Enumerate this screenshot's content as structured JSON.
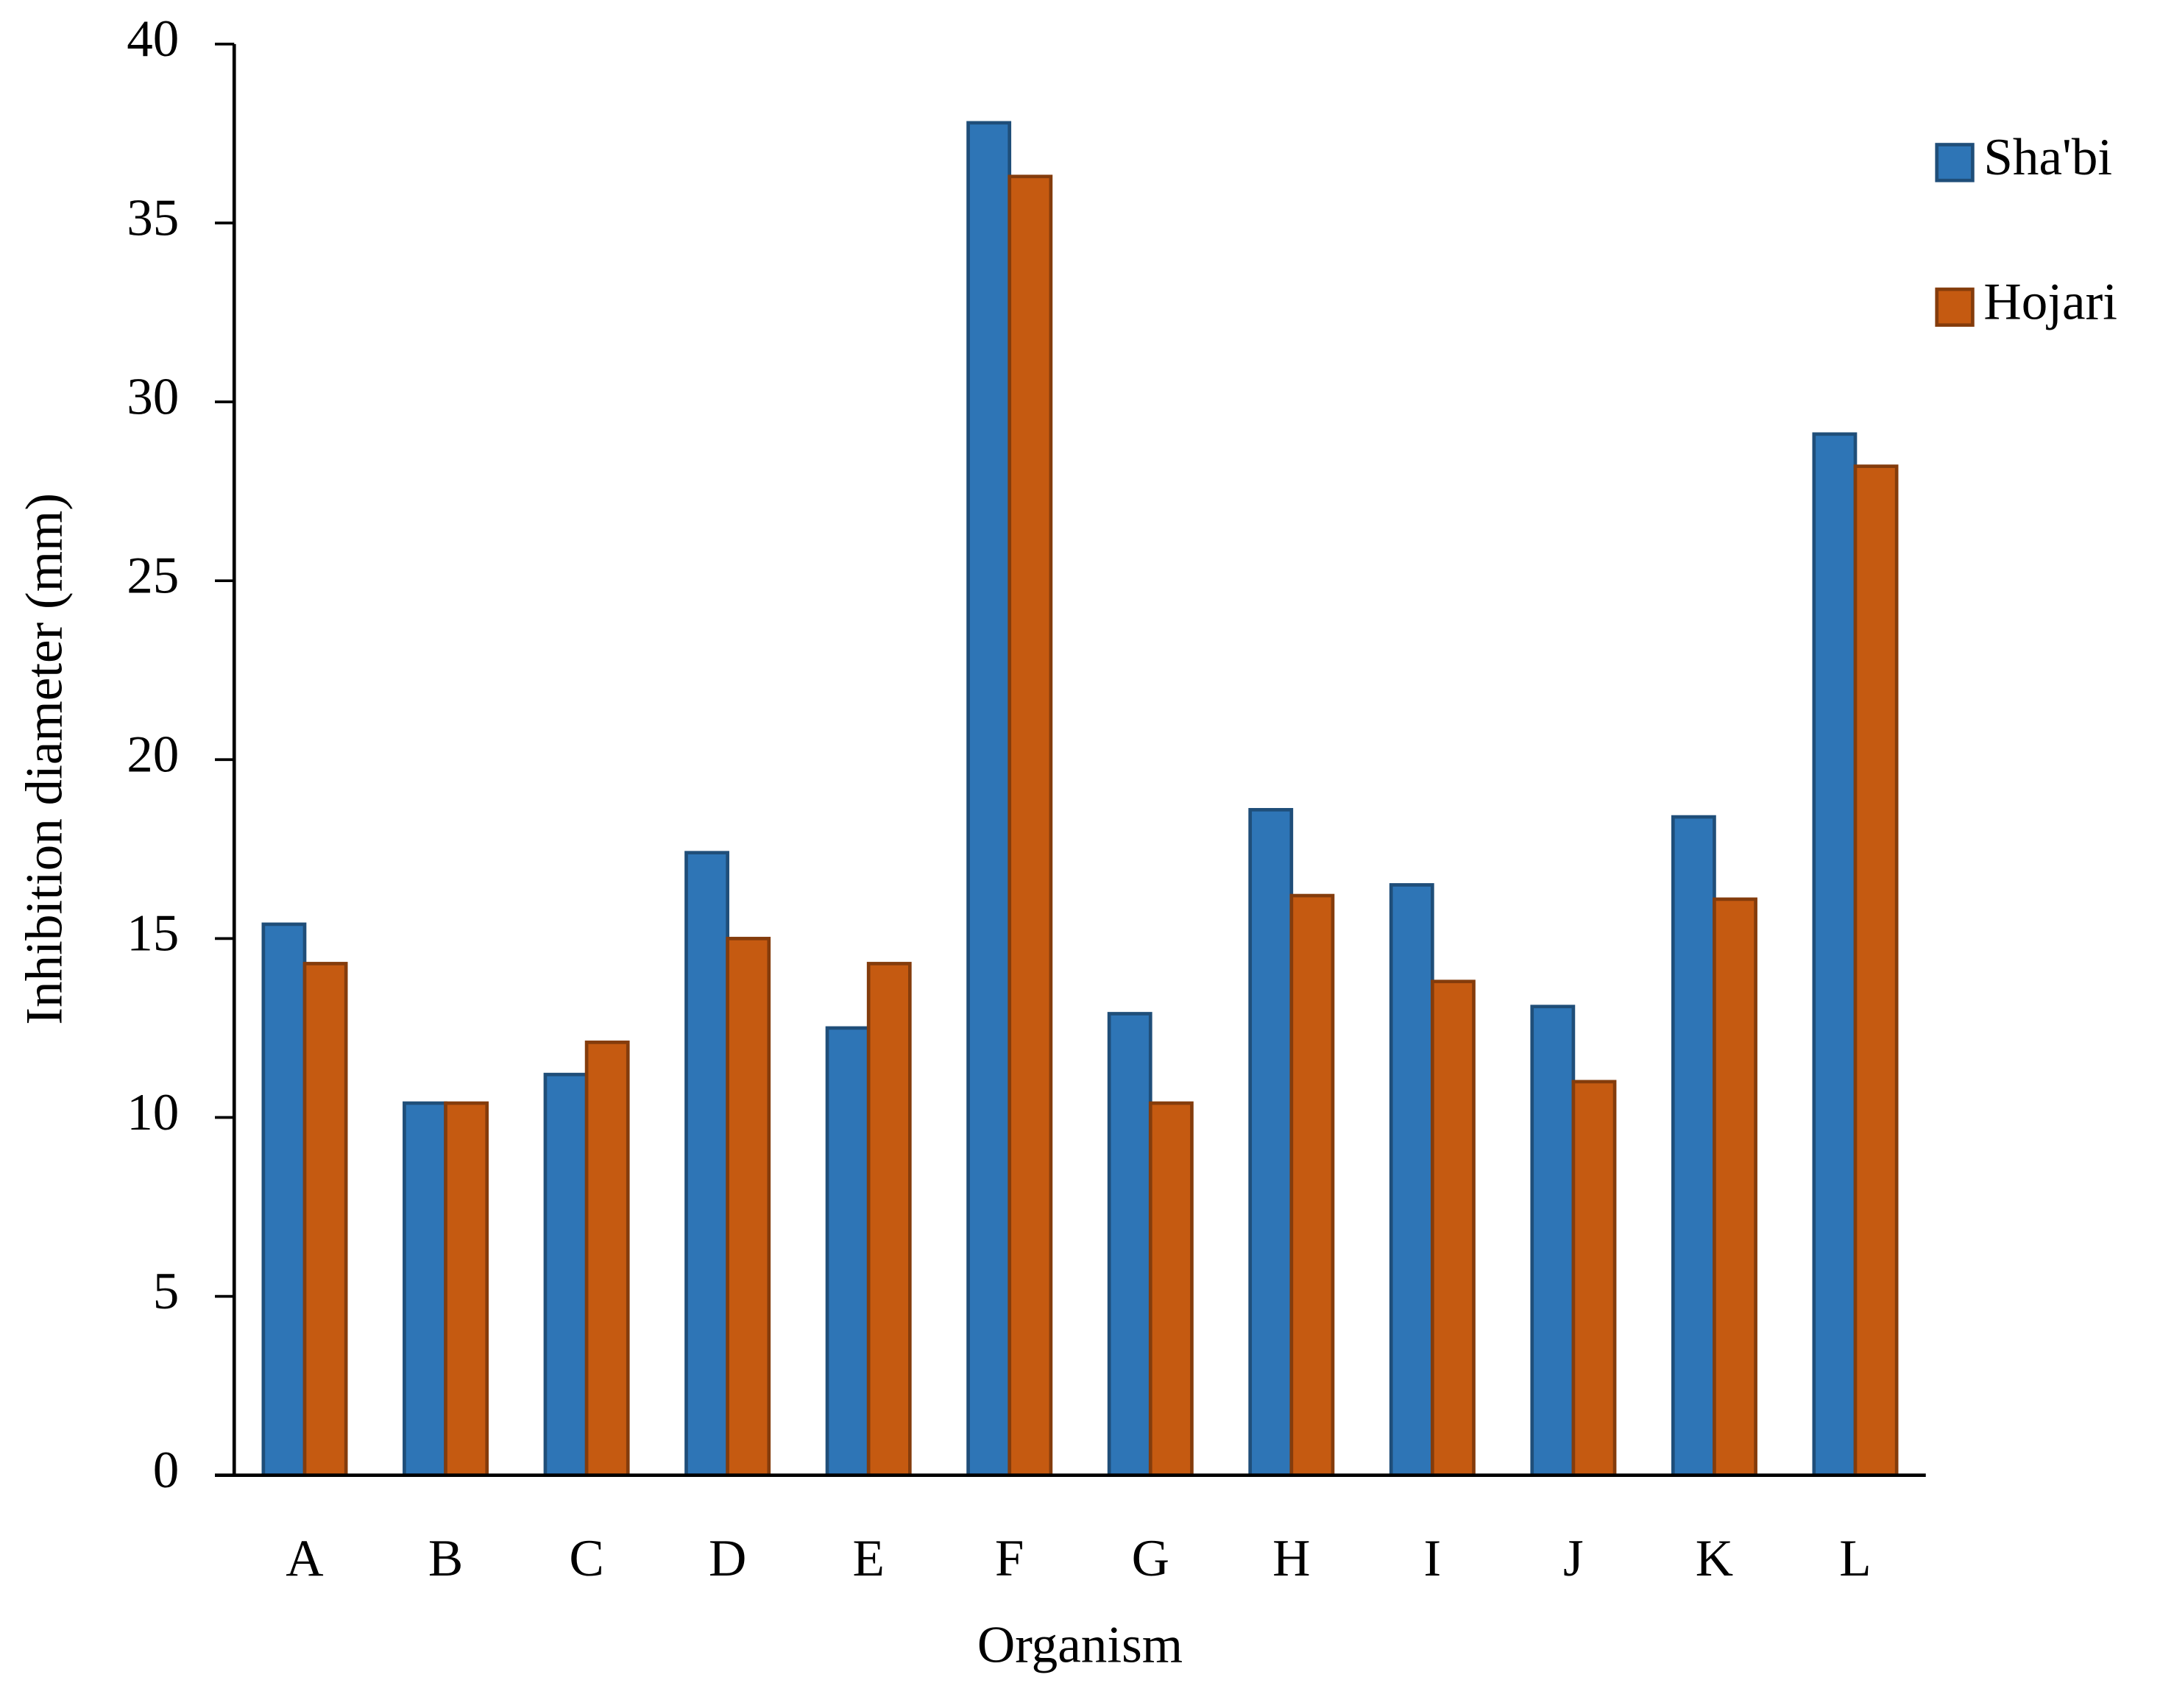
{
  "chart_data": {
    "type": "bar",
    "x_label": "Organism",
    "y_label": "Inhibition diameter (mm)",
    "categories": [
      "A",
      "B",
      "C",
      "D",
      "E",
      "F",
      "G",
      "H",
      "I",
      "J",
      "K",
      "L"
    ],
    "series": [
      {
        "name": "Sha'bi",
        "color": "#2e75b6",
        "edge": "#1f4e79",
        "values": [
          15.4,
          10.4,
          11.2,
          17.4,
          12.5,
          37.8,
          12.9,
          18.6,
          16.5,
          13.1,
          18.4,
          29.1
        ]
      },
      {
        "name": "Hojari",
        "color": "#c55a11",
        "edge": "#843c0c",
        "values": [
          14.3,
          10.4,
          12.1,
          15.0,
          14.3,
          36.3,
          10.4,
          16.2,
          13.8,
          11.0,
          16.1,
          28.2
        ]
      }
    ],
    "ylim": [
      0,
      40
    ],
    "yticks": [
      0,
      5,
      10,
      15,
      20,
      25,
      30,
      35,
      40
    ],
    "grid": false,
    "legend": "right"
  }
}
